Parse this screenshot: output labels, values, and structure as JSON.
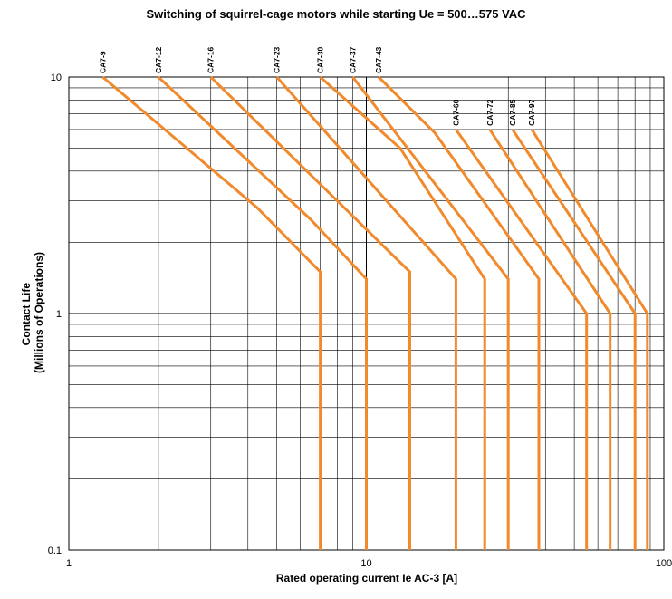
{
  "chart_data": {
    "type": "line",
    "title": "Switching of squirrel-cage motors while starting   Ue = 500…575 VAC",
    "xlabel": "Rated operating current Ie AC-3 [A]",
    "ylabel": "Contact Life (Millions of Operations)",
    "ylabel_lines": [
      "Contact Life",
      "(Millions of Operations)"
    ],
    "x_scale": "log",
    "y_scale": "log",
    "xlim": [
      1,
      100
    ],
    "ylim": [
      0.1,
      10
    ],
    "x_ticks": [
      {
        "value": 1,
        "label": "1"
      },
      {
        "value": 10,
        "label": "10"
      },
      {
        "value": 100,
        "label": "100"
      }
    ],
    "y_ticks": [
      {
        "value": 10,
        "label": "10"
      },
      {
        "value": 1,
        "label": "1"
      },
      {
        "value": 0.1,
        "label": "0.1"
      }
    ],
    "grid": true,
    "line_color": "#f08a2c",
    "series": [
      {
        "name": "CA7-9",
        "points": [
          [
            1.3,
            10
          ],
          [
            4.3,
            2.8
          ],
          [
            7,
            1.5
          ],
          [
            7,
            0.1
          ]
        ]
      },
      {
        "name": "CA7-12",
        "points": [
          [
            2.0,
            10
          ],
          [
            6.5,
            2.5
          ],
          [
            10,
            1.4
          ],
          [
            10,
            0.1
          ]
        ]
      },
      {
        "name": "CA7-16",
        "points": [
          [
            3.0,
            10
          ],
          [
            14,
            1.5
          ],
          [
            14,
            0.1
          ]
        ]
      },
      {
        "name": "CA7-23",
        "points": [
          [
            5.0,
            10
          ],
          [
            20,
            1.4
          ],
          [
            20,
            0.1
          ]
        ]
      },
      {
        "name": "CA7-30",
        "points": [
          [
            7.0,
            10
          ],
          [
            13,
            5
          ],
          [
            25,
            1.4
          ],
          [
            25,
            0.1
          ]
        ]
      },
      {
        "name": "CA7-37",
        "points": [
          [
            9.0,
            10
          ],
          [
            30,
            1.4
          ],
          [
            30,
            0.1
          ]
        ]
      },
      {
        "name": "CA7-43",
        "points": [
          [
            11.0,
            10
          ],
          [
            17,
            5.8
          ],
          [
            38,
            1.4
          ],
          [
            38,
            0.1
          ]
        ]
      },
      {
        "name": "CA7-60",
        "points": [
          [
            20,
            6
          ],
          [
            55,
            1
          ],
          [
            55,
            0.1
          ]
        ]
      },
      {
        "name": "CA7-72",
        "points": [
          [
            26,
            6
          ],
          [
            66,
            1
          ],
          [
            66,
            0.1
          ]
        ]
      },
      {
        "name": "CA7-85",
        "points": [
          [
            31,
            6
          ],
          [
            80,
            1
          ],
          [
            80,
            0.1
          ]
        ]
      },
      {
        "name": "CA7-97",
        "points": [
          [
            36,
            6
          ],
          [
            88,
            1
          ],
          [
            88,
            0.1
          ]
        ]
      }
    ]
  }
}
